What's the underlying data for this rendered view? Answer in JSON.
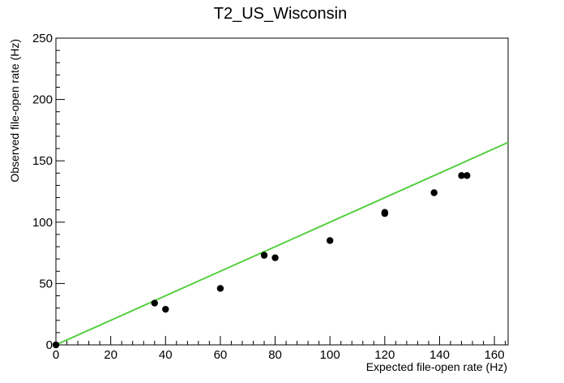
{
  "chart_data": {
    "type": "scatter",
    "title": "T2_US_Wisconsin",
    "xlabel": "Expected file-open rate (Hz)",
    "ylabel": "Observed file-open rate (Hz)",
    "xlim": [
      0,
      165
    ],
    "ylim": [
      0,
      250
    ],
    "x_ticks": [
      0,
      20,
      40,
      60,
      80,
      100,
      120,
      140,
      160
    ],
    "y_ticks": [
      0,
      50,
      100,
      150,
      200,
      250
    ],
    "grid": false,
    "legend": "none",
    "points": [
      {
        "x": 0,
        "y": 0
      },
      {
        "x": 36,
        "y": 34
      },
      {
        "x": 40,
        "y": 29
      },
      {
        "x": 60,
        "y": 46
      },
      {
        "x": 76,
        "y": 73
      },
      {
        "x": 80,
        "y": 71
      },
      {
        "x": 100,
        "y": 85
      },
      {
        "x": 120,
        "y": 107
      },
      {
        "x": 120,
        "y": 108
      },
      {
        "x": 138,
        "y": 124
      },
      {
        "x": 148,
        "y": 138
      },
      {
        "x": 150,
        "y": 138
      }
    ],
    "reference_line": {
      "x": [
        0,
        165
      ],
      "y": [
        0,
        165
      ]
    },
    "colors": {
      "points": "#000000",
      "line": "#55d040",
      "axes": "#000000"
    }
  }
}
